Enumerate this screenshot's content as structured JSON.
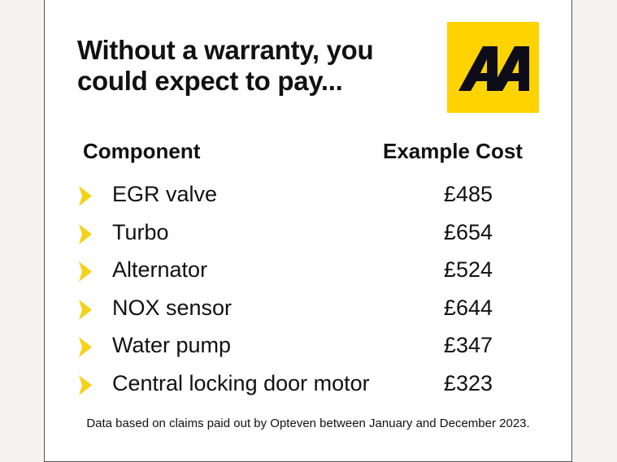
{
  "title_lines": [
    "Without a warranty, you",
    "could expect to pay..."
  ],
  "logo": {
    "text": "AA",
    "color": "#ffd300"
  },
  "headers": {
    "component": "Component",
    "cost": "Example Cost"
  },
  "rows": [
    {
      "component": "EGR valve",
      "cost": "£485"
    },
    {
      "component": "Turbo",
      "cost": "£654"
    },
    {
      "component": "Alternator",
      "cost": "£524"
    },
    {
      "component": "NOX sensor",
      "cost": "£644"
    },
    {
      "component": "Water pump",
      "cost": "£347"
    },
    {
      "component": "Central locking door motor",
      "cost": "£323"
    }
  ],
  "bullet_icon": "yellow-chevron-icon",
  "bullet_color": "#f7d117",
  "footnote": "Data based on claims paid out by Opteven between January and December 2023."
}
